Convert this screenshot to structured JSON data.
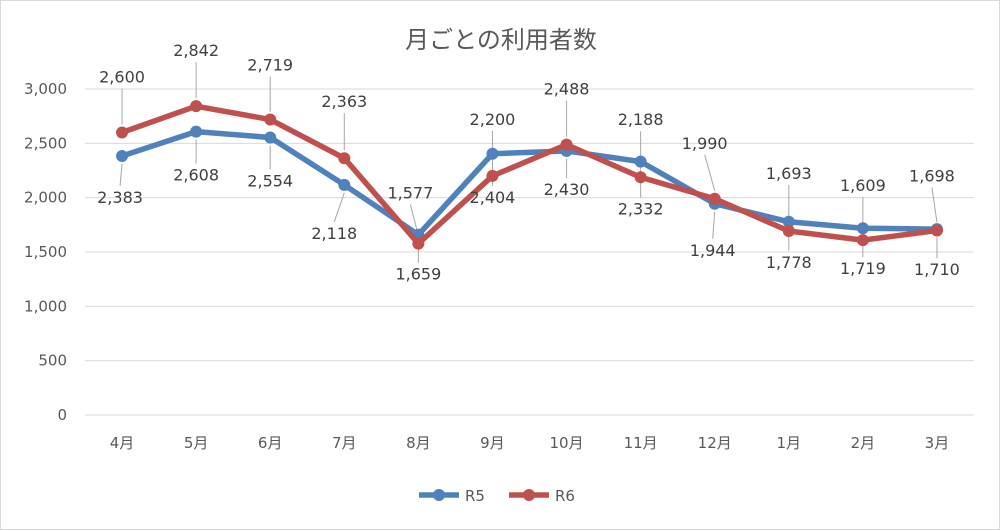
{
  "chart_data": {
    "type": "line",
    "title": "月ごとの利用者数",
    "categories": [
      "4月",
      "5月",
      "6月",
      "7月",
      "8月",
      "9月",
      "10月",
      "11月",
      "12月",
      "1月",
      "2月",
      "3月"
    ],
    "series": [
      {
        "name": "R5",
        "color": "#4f81bd",
        "values": [
          2383,
          2608,
          2554,
          2118,
          1659,
          2404,
          2430,
          2332,
          1944,
          1778,
          1719,
          1710
        ],
        "labels": [
          "2,383",
          "2,608",
          "2,554",
          "2,118",
          "1,659",
          "2,404",
          "2,430",
          "2,332",
          "1,944",
          "1,778",
          "1,719",
          "1,710"
        ]
      },
      {
        "name": "R6",
        "color": "#c0504d",
        "values": [
          2600,
          2842,
          2719,
          2363,
          1577,
          2200,
          2488,
          2188,
          1990,
          1693,
          1609,
          1698
        ],
        "labels": [
          "2,600",
          "2,842",
          "2,719",
          "2,363",
          "1,577",
          "2,200",
          "2,488",
          "2,188",
          "1,990",
          "1,693",
          "1,609",
          "1,698"
        ]
      }
    ],
    "ylim": [
      0,
      3000
    ],
    "yticks": [
      0,
      500,
      1000,
      1500,
      2000,
      2500,
      3000
    ],
    "ytick_labels": [
      "0",
      "500",
      "1,000",
      "1,500",
      "2,000",
      "2,500",
      "3,000"
    ],
    "grid": true,
    "legend_position": "bottom"
  }
}
